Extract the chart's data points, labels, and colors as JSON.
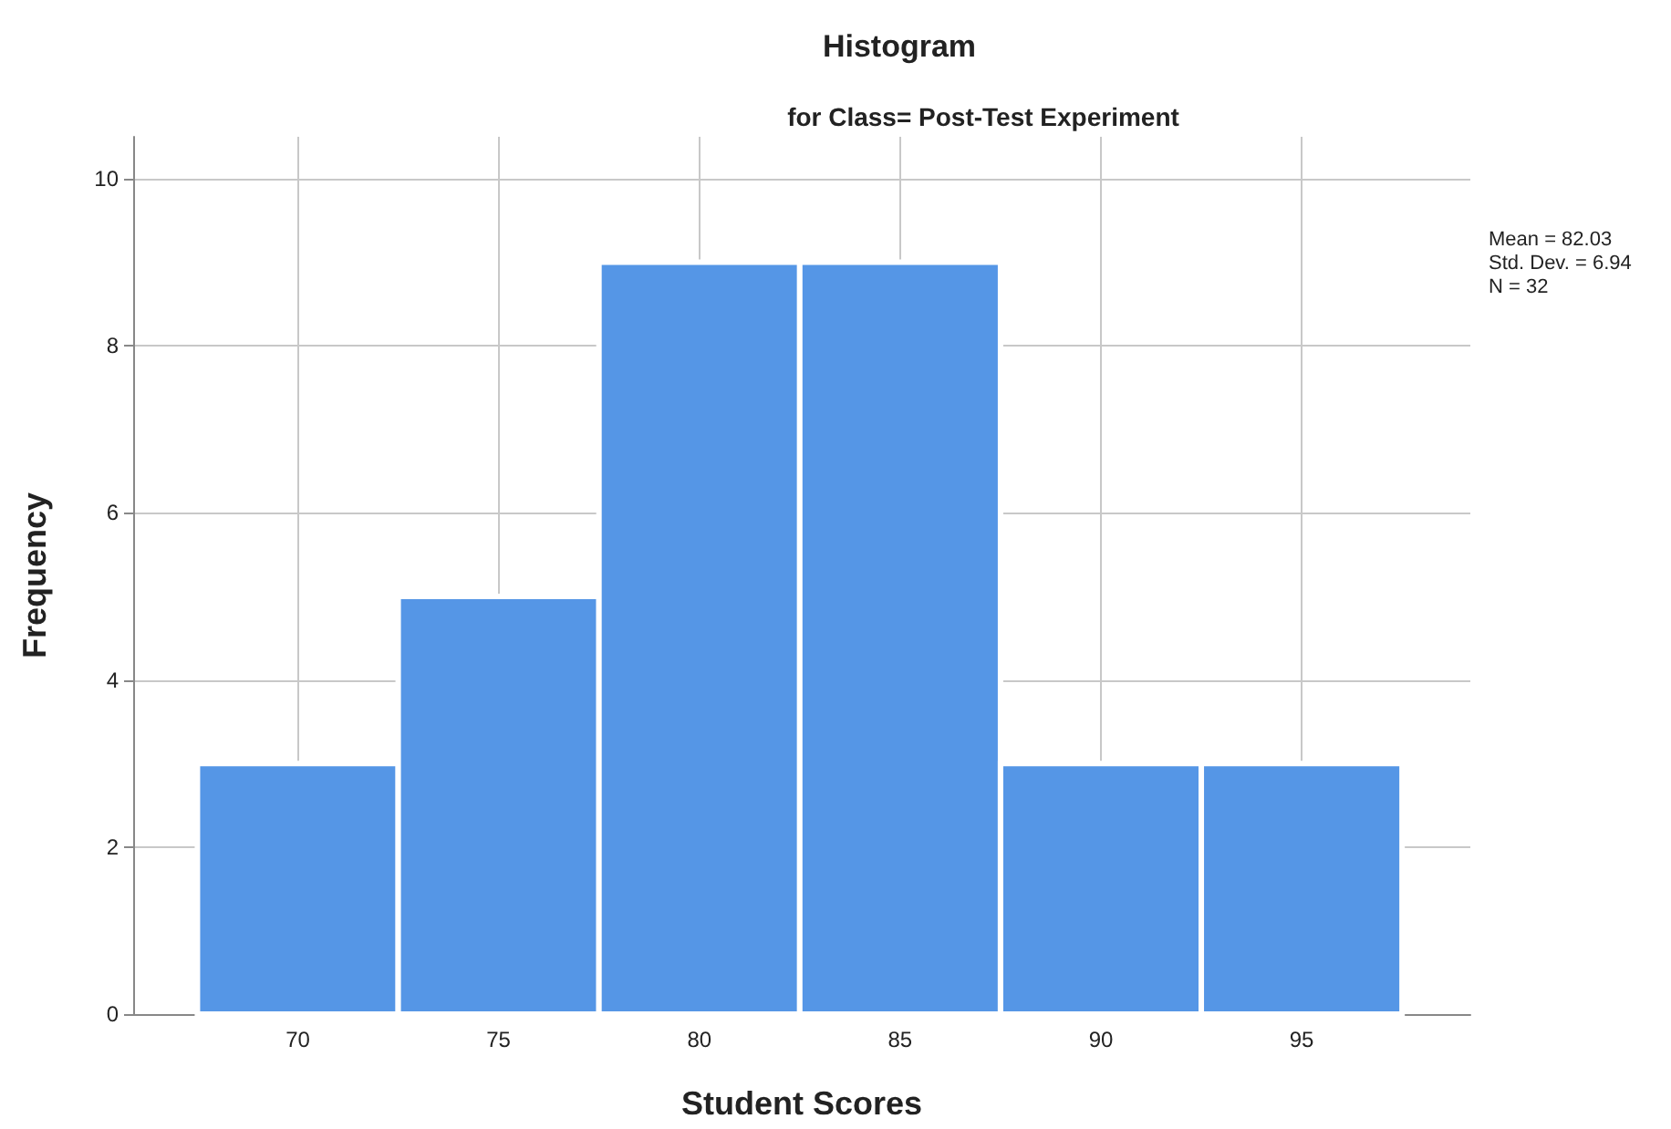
{
  "chart_data": {
    "type": "histogram",
    "title": "Histogram",
    "subtitle": "for Class= Post-Test Experiment",
    "xlabel": "Student Scores",
    "ylabel": "Frequency",
    "bins": [
      67.5,
      72.5,
      77.5,
      82.5,
      87.5,
      92.5,
      97.5
    ],
    "values": [
      3,
      5,
      9,
      9,
      3,
      3
    ],
    "color": "#5596e6",
    "xlim": [
      65.9,
      99.2
    ],
    "xticks": [
      70,
      75,
      80,
      85,
      90,
      95
    ],
    "ylim": [
      0,
      10.5
    ],
    "yticks": [
      0,
      2,
      4,
      6,
      8,
      10
    ],
    "grid": true,
    "annotations": [
      "Mean = 82.03",
      "Std. Dev. = 6.94",
      "N = 32"
    ]
  }
}
